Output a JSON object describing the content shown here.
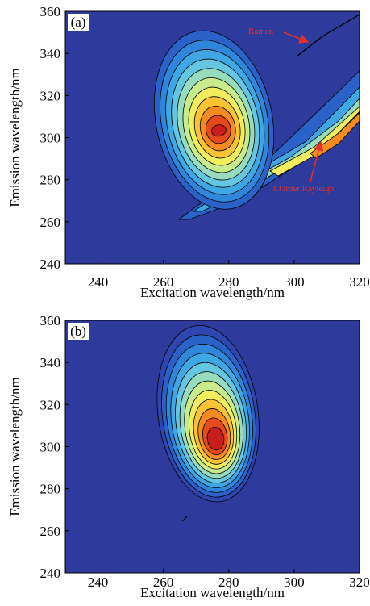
{
  "chart_data": [
    {
      "type": "contour",
      "panel_label": "(a)",
      "xlabel": "Excitation wavelength/nm",
      "ylabel": "Emission wavelength/nm",
      "xlim": [
        230,
        320
      ],
      "xticks": [
        240,
        260,
        280,
        300,
        320
      ],
      "ylim": [
        240,
        360
      ],
      "yticks": [
        240,
        260,
        280,
        300,
        320,
        340,
        360
      ],
      "annotations": [
        "Raman",
        "1.Order Rayleigh"
      ]
    },
    {
      "type": "contour",
      "panel_label": "(b)",
      "xlabel": "Excitation wavelength/nm",
      "ylabel": "Emission wavelength/nm",
      "xlim": [
        230,
        320
      ],
      "xticks": [
        240,
        260,
        280,
        300,
        320
      ],
      "ylim": [
        240,
        360
      ],
      "yticks": [
        240,
        260,
        280,
        300,
        320,
        340,
        360
      ]
    }
  ]
}
